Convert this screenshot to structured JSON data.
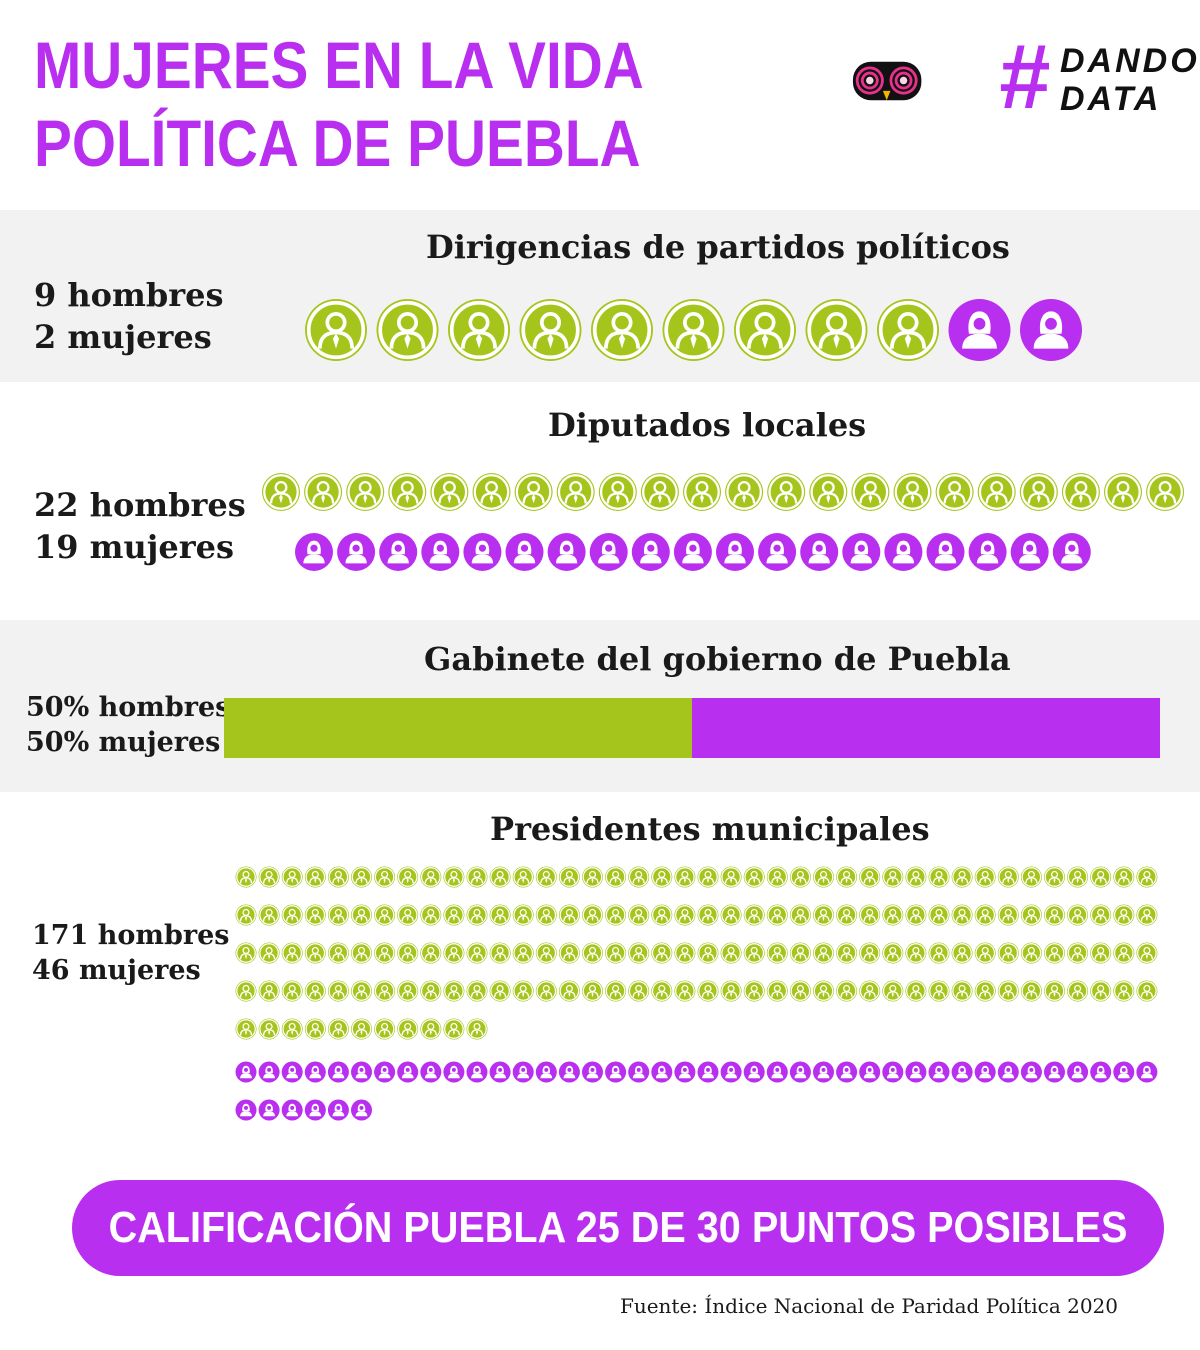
{
  "title": {
    "line1": "MUJERES EN LA VIDA",
    "line2": "POLÍTICA DE PUEBLA"
  },
  "logo": {
    "hash": "#",
    "line1": "DANDO",
    "line2": "DATA",
    "icon": "owl-eyes-icon"
  },
  "colors": {
    "men": "#a6c51c",
    "women": "#b92ff0",
    "band_grey": "#f2f2f2"
  },
  "sections": {
    "dirigencias": {
      "title": "Dirigencias de partidos políticos",
      "men_label": "9 hombres",
      "women_label": "2 mujeres"
    },
    "diputados": {
      "title": "Diputados locales",
      "men_label": "22 hombres",
      "women_label": "19 mujeres"
    },
    "gabinete": {
      "title": "Gabinete del gobierno de Puebla",
      "men_label": "50% hombres",
      "women_label": "50% mujeres"
    },
    "presidentes": {
      "title": "Presidentes municipales",
      "men_label": "171 hombres",
      "women_label": "46 mujeres"
    }
  },
  "chart_data": [
    {
      "type": "bar",
      "categories": [
        "hombres",
        "mujeres"
      ],
      "values": [
        9,
        2
      ]
    },
    {
      "type": "bar",
      "categories": [
        "hombres",
        "mujeres"
      ],
      "values": [
        22,
        19
      ]
    },
    {
      "type": "bar",
      "categories": [
        "hombres",
        "mujeres"
      ],
      "values": [
        50,
        50
      ],
      "unit": "%"
    },
    {
      "type": "bar",
      "categories": [
        "hombres",
        "mujeres"
      ],
      "values": [
        171,
        46
      ]
    }
  ],
  "banner": "CALIFICACIÓN PUEBLA 25 DE 30 PUNTOS POSIBLES",
  "source": "Fuente: Índice Nacional de Paridad Política 2020"
}
